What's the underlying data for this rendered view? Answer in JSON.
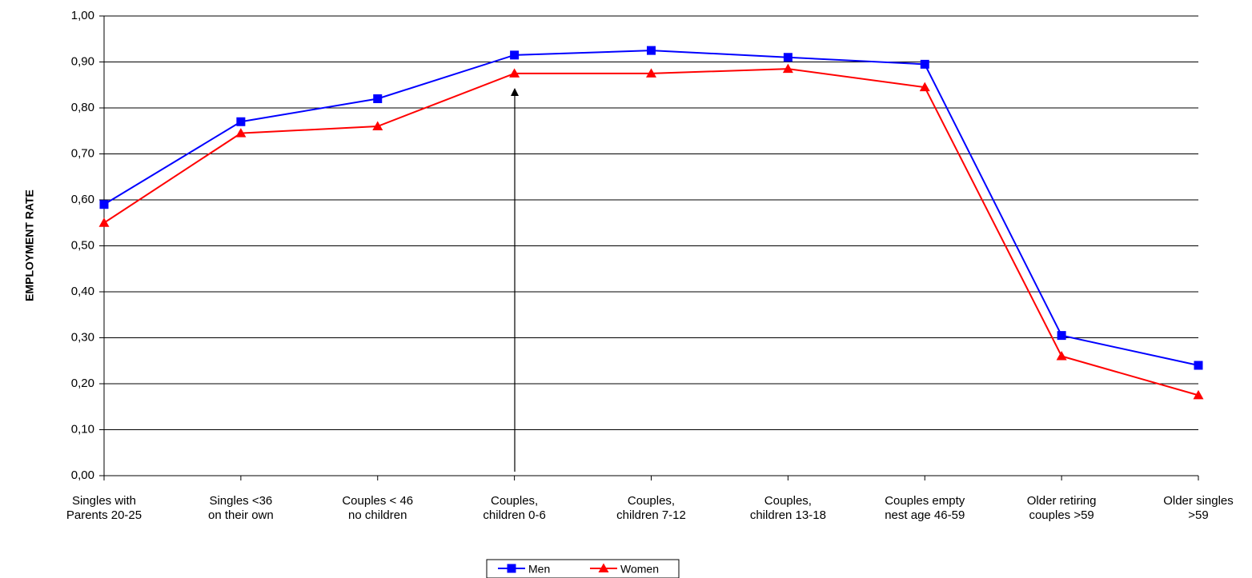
{
  "chart_data": {
    "type": "line",
    "y_label": "EMPLOYMENT RATE",
    "categories": [
      "Singles with\nParents 20-25",
      "Singles  <36\non their own",
      "Couples < 46\nno children",
      "Couples,\nchildren 0-6",
      "Couples,\nchildren 7-12",
      "Couples,\nchildren 13-18",
      "Couples empty\nnest age 46-59",
      "Older retiring\ncouples >59",
      "Older singles\n>59"
    ],
    "series": [
      {
        "name": "Men",
        "color": "#0000ff",
        "marker": "square",
        "values": [
          0.59,
          0.77,
          0.82,
          0.915,
          0.925,
          0.91,
          0.895,
          0.305,
          0.24
        ]
      },
      {
        "name": "Women",
        "color": "#ff0000",
        "marker": "triangle",
        "values": [
          0.55,
          0.745,
          0.76,
          0.875,
          0.875,
          0.885,
          0.845,
          0.26,
          0.175
        ]
      }
    ],
    "ylim": [
      0,
      1
    ],
    "yticks": [
      {
        "value": 0,
        "label": "0,00"
      },
      {
        "value": 0.1,
        "label": "0,10"
      },
      {
        "value": 0.2,
        "label": "0,20"
      },
      {
        "value": 0.3,
        "label": "0,30"
      },
      {
        "value": 0.4,
        "label": "0,40"
      },
      {
        "value": 0.5,
        "label": "0,50"
      },
      {
        "value": 0.6,
        "label": "0,60"
      },
      {
        "value": 0.7,
        "label": "0,70"
      },
      {
        "value": 0.8,
        "label": "0,80"
      },
      {
        "value": 0.9,
        "label": "0,90"
      },
      {
        "value": 1,
        "label": "1,00"
      }
    ],
    "grid": true,
    "legend": "bottom"
  }
}
